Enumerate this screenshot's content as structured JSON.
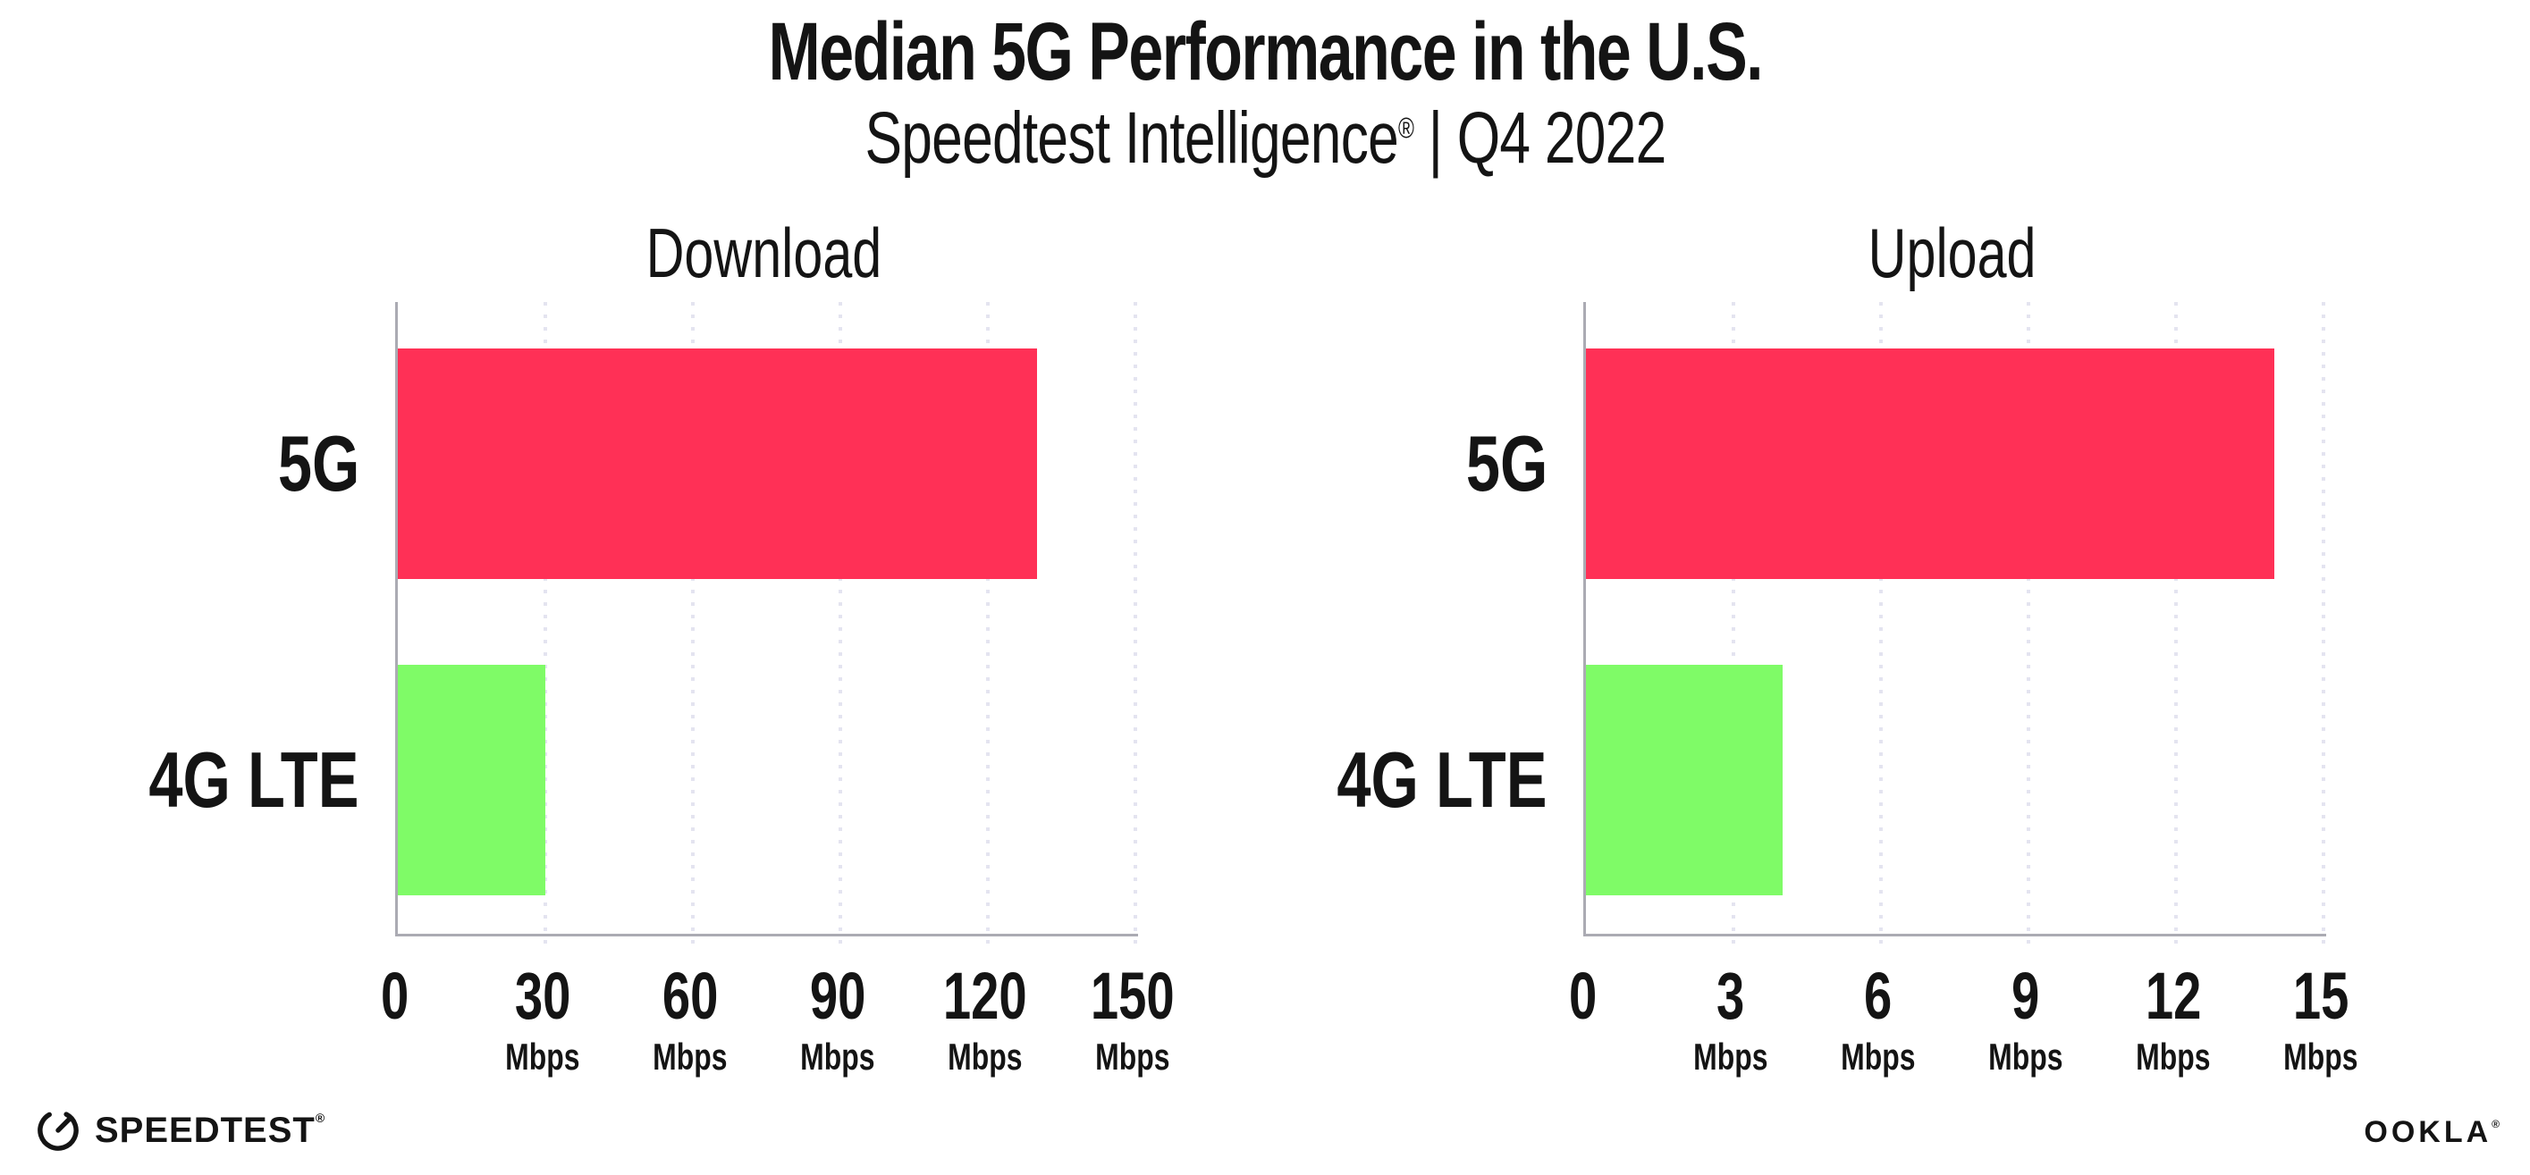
{
  "header": {
    "title": "Median 5G Performance in the U.S.",
    "subtitle_brand": "Speedtest Intelligence",
    "subtitle_reg": "®",
    "subtitle_rest": " | Q4 2022"
  },
  "chart_data": [
    {
      "type": "bar",
      "orientation": "horizontal",
      "title": "Download",
      "categories": [
        "5G",
        "4G LTE"
      ],
      "values": [
        130,
        30
      ],
      "unit": "Mbps",
      "xlim": [
        0,
        150
      ],
      "xticks": [
        0,
        30,
        60,
        90,
        120,
        150
      ],
      "bar_colors": [
        "#FF3056",
        "#7FFB67"
      ],
      "grid": "vertical-dotted",
      "legend": "none"
    },
    {
      "type": "bar",
      "orientation": "horizontal",
      "title": "Upload",
      "categories": [
        "5G",
        "4G LTE"
      ],
      "values": [
        14,
        4
      ],
      "unit": "Mbps",
      "xlim": [
        0,
        15
      ],
      "xticks": [
        0,
        3,
        6,
        9,
        12,
        15
      ],
      "bar_colors": [
        "#FF3056",
        "#7FFB67"
      ],
      "grid": "vertical-dotted",
      "legend": "none"
    }
  ],
  "colors": {
    "bar_5g": "#FF3056",
    "bar_4g_lte": "#7FFB67",
    "axis": "#ABABB3",
    "gridline": "#E4E4F0",
    "text": "#141414"
  },
  "footer": {
    "speedtest_label": "SPEEDTEST",
    "speedtest_reg": "®",
    "speedtest_icon": "gauge-icon",
    "ookla_label": "OOKLA",
    "ookla_reg": "®"
  }
}
